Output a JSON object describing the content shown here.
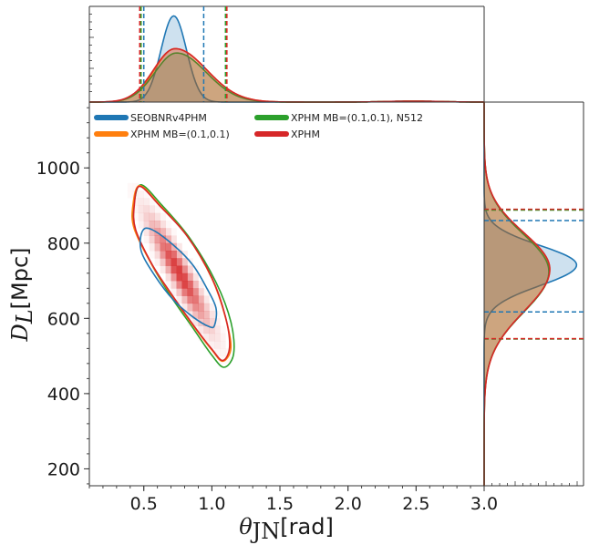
{
  "chart_data": {
    "type": "corner",
    "x_axis": {
      "label_symbol": "θ",
      "label_subscript": "JN",
      "label_unit": "[rad]",
      "range": [
        0.1,
        3.0
      ],
      "ticks": [
        0.5,
        1.0,
        1.5,
        2.0,
        2.5,
        3.0
      ],
      "tick_labels": [
        "0.5",
        "1.0",
        "1.5",
        "2.0",
        "2.5",
        "3.0"
      ]
    },
    "y_axis": {
      "label_symbol": "D",
      "label_subscript": "L",
      "label_unit": "[Mpc]",
      "range": [
        155,
        1175
      ],
      "ticks": [
        200,
        400,
        600,
        800,
        1000
      ],
      "tick_labels": [
        "200",
        "400",
        "600",
        "800",
        "1000"
      ]
    },
    "series": [
      {
        "name": "SEOBNRv4PHM",
        "color": "#1f77b4",
        "theta_ci": [
          0.5,
          0.94
        ],
        "dl_ci": [
          617,
          860
        ],
        "theta_peak": 0.72,
        "dl_peak": 742,
        "contour": [
          [
            0.56,
            836
          ],
          [
            0.72,
            794
          ],
          [
            0.86,
            742
          ],
          [
            0.96,
            682
          ],
          [
            1.03,
            628
          ],
          [
            1.02,
            582
          ],
          [
            0.98,
            578
          ],
          [
            0.86,
            604
          ],
          [
            0.72,
            648
          ],
          [
            0.58,
            714
          ],
          [
            0.48,
            780
          ],
          [
            0.49,
            832
          ]
        ]
      },
      {
        "name": "XPHM MB=(0.1,0.1)",
        "color": "#ff7f0e",
        "theta_ci": [
          0.48,
          1.11
        ],
        "dl_ci": [
          546,
          889
        ],
        "theta_peak": 0.73,
        "dl_peak": 730,
        "contour": [
          [
            0.47,
            953
          ],
          [
            0.62,
            900
          ],
          [
            0.82,
            818
          ],
          [
            1.0,
            706
          ],
          [
            1.1,
            602
          ],
          [
            1.14,
            522
          ],
          [
            1.08,
            486
          ],
          [
            1.0,
            516
          ],
          [
            0.86,
            582
          ],
          [
            0.7,
            664
          ],
          [
            0.56,
            742
          ],
          [
            0.43,
            838
          ],
          [
            0.42,
            900
          ]
        ]
      },
      {
        "name": "XPHM MB=(0.1,0.1), N512",
        "color": "#2ca02c",
        "theta_ci": [
          0.48,
          1.1
        ],
        "dl_ci": [
          545,
          888
        ],
        "theta_peak": 0.74,
        "dl_peak": 725,
        "contour": [
          [
            0.48,
            955
          ],
          [
            0.63,
            902
          ],
          [
            0.84,
            812
          ],
          [
            1.03,
            696
          ],
          [
            1.14,
            590
          ],
          [
            1.16,
            506
          ],
          [
            1.09,
            470
          ],
          [
            1.0,
            502
          ],
          [
            0.86,
            575
          ],
          [
            0.7,
            658
          ],
          [
            0.56,
            742
          ],
          [
            0.43,
            842
          ],
          [
            0.43,
            908
          ]
        ]
      },
      {
        "name": "XPHM",
        "color": "#d62728",
        "theta_ci": [
          0.47,
          1.11
        ],
        "dl_ci": [
          546,
          890
        ],
        "theta_peak": 0.73,
        "dl_peak": 731,
        "contour": [
          [
            0.47,
            951
          ],
          [
            0.62,
            898
          ],
          [
            0.82,
            818
          ],
          [
            1.0,
            708
          ],
          [
            1.1,
            604
          ],
          [
            1.13,
            524
          ],
          [
            1.08,
            488
          ],
          [
            1.0,
            518
          ],
          [
            0.86,
            584
          ],
          [
            0.7,
            666
          ],
          [
            0.56,
            744
          ],
          [
            0.44,
            836
          ],
          [
            0.43,
            900
          ]
        ]
      }
    ],
    "heatmap": {
      "color": "#d62728",
      "center_theta": 0.76,
      "center_dl": 722,
      "theta_sigma": 0.14,
      "dl_sigma": 90,
      "correlation": -0.93,
      "theta_bin": 0.04,
      "dl_bin": 20
    },
    "legend": {
      "position": "top-left",
      "columns": 2
    }
  }
}
